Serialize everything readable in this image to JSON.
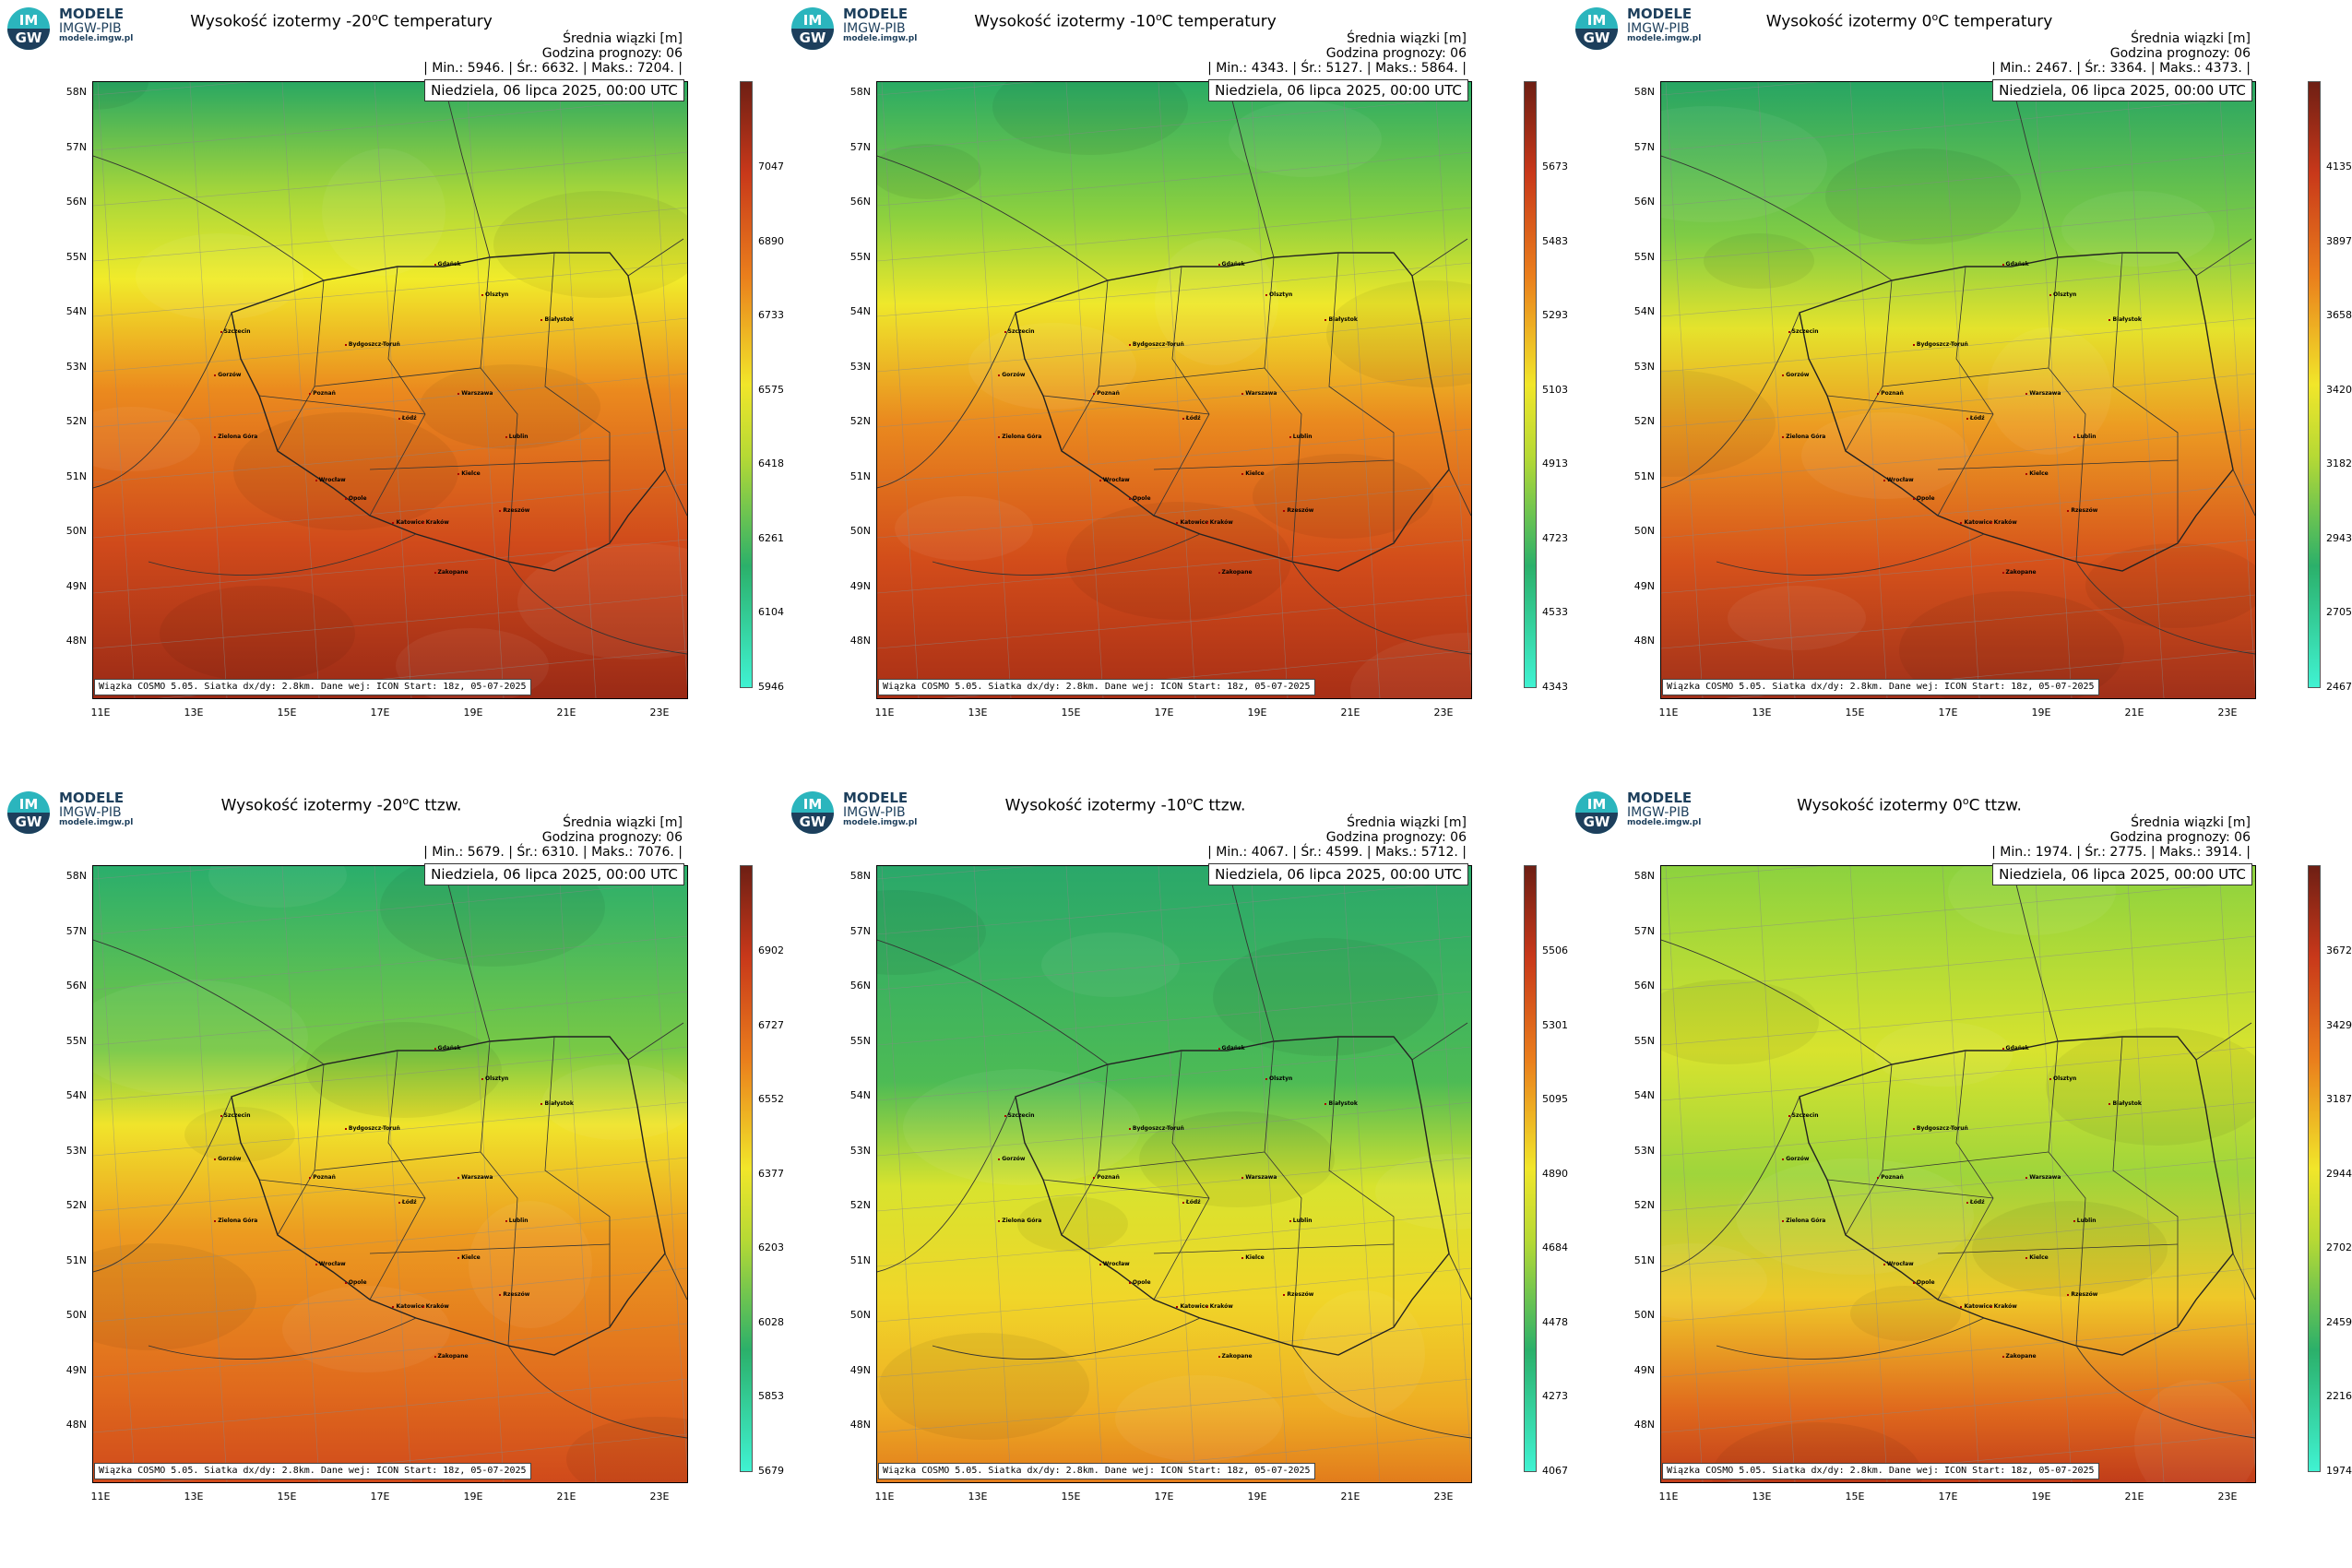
{
  "logo": {
    "badge_top": "IM",
    "badge_bottom": "GW",
    "line1": "MODELE",
    "line2": "IMGW-PIB",
    "line3": "modele.imgw.pl"
  },
  "common": {
    "unit_line": "Średnia wiązki [m]",
    "forecast_line": "Godzina prognozy: 06",
    "date": "Niedziela, 06 lipca 2025, 00:00 UTC",
    "footer": "Wiązka COSMO 5.05. Siatka dx/dy: 2.8km. Dane wej: ICON Start: 18z, 05-07-2025",
    "lat_labels": [
      "58N",
      "57N",
      "56N",
      "55N",
      "54N",
      "53N",
      "52N",
      "51N",
      "50N",
      "49N",
      "48N"
    ],
    "lon_labels": [
      "11E",
      "13E",
      "15E",
      "17E",
      "19E",
      "21E",
      "23E"
    ],
    "cities": [
      "Gdańsk",
      "Olsztyn",
      "Szczecin",
      "Białystok",
      "Bydgoszcz-Toruń",
      "Gorzów",
      "Poznań",
      "Warszawa",
      "Zielona Góra",
      "Łódź",
      "Lublin",
      "Wrocław",
      "Opole",
      "Kielce",
      "Katowice",
      "Kraków",
      "Rzeszów",
      "Zakopane"
    ]
  },
  "panels": [
    {
      "title_prefix": "Wysokość izotermy -20",
      "title_suffix": "C temperatury",
      "deg": "o",
      "min": "5946.",
      "avg": "6632.",
      "max": "7204.",
      "scale_labels": [
        "7047",
        "6890",
        "6733",
        "6575",
        "6418",
        "6261",
        "6104",
        "5946"
      ]
    },
    {
      "title_prefix": "Wysokość izotermy -10",
      "title_suffix": "C temperatury",
      "deg": "o",
      "min": "4343.",
      "avg": "5127.",
      "max": "5864.",
      "scale_labels": [
        "5673",
        "5483",
        "5293",
        "5103",
        "4913",
        "4723",
        "4533",
        "4343"
      ]
    },
    {
      "title_prefix": "Wysokość izotermy 0",
      "title_suffix": "C temperatury",
      "deg": "o",
      "min": "2467.",
      "avg": "3364.",
      "max": "4373.",
      "scale_labels": [
        "4135",
        "3897",
        "3658",
        "3420",
        "3182",
        "2943",
        "2705",
        "2467"
      ]
    },
    {
      "title_prefix": "Wysokość izotermy -20",
      "title_suffix": "C ttzw.",
      "deg": "o",
      "min": "5679.",
      "avg": "6310.",
      "max": "7076.",
      "scale_labels": [
        "6902",
        "6727",
        "6552",
        "6377",
        "6203",
        "6028",
        "5853",
        "5679"
      ]
    },
    {
      "title_prefix": "Wysokość izotermy -10",
      "title_suffix": "C ttzw.",
      "deg": "o",
      "min": "4067.",
      "avg": "4599.",
      "max": "5712.",
      "scale_labels": [
        "5506",
        "5301",
        "5095",
        "4890",
        "4684",
        "4478",
        "4273",
        "4067"
      ]
    },
    {
      "title_prefix": "Wysokość izotermy 0",
      "title_suffix": "C ttzw.",
      "deg": "o",
      "min": "1974.",
      "avg": "2775.",
      "max": "3914.",
      "scale_labels": [
        "3672",
        "3429",
        "3187",
        "2944",
        "2702",
        "2459",
        "2216",
        "1974"
      ]
    }
  ],
  "stats_labels": {
    "min": "| Min.:",
    "avg": "| Śr.:",
    "max": "| Maks.:",
    "end": "|"
  },
  "colors": {
    "green": "#2bb06a",
    "yellow": "#f3ee2a",
    "orange": "#ea7e1c",
    "red": "#c8381a",
    "darkred": "#6e1f14",
    "cyan": "#40f2d2"
  }
}
